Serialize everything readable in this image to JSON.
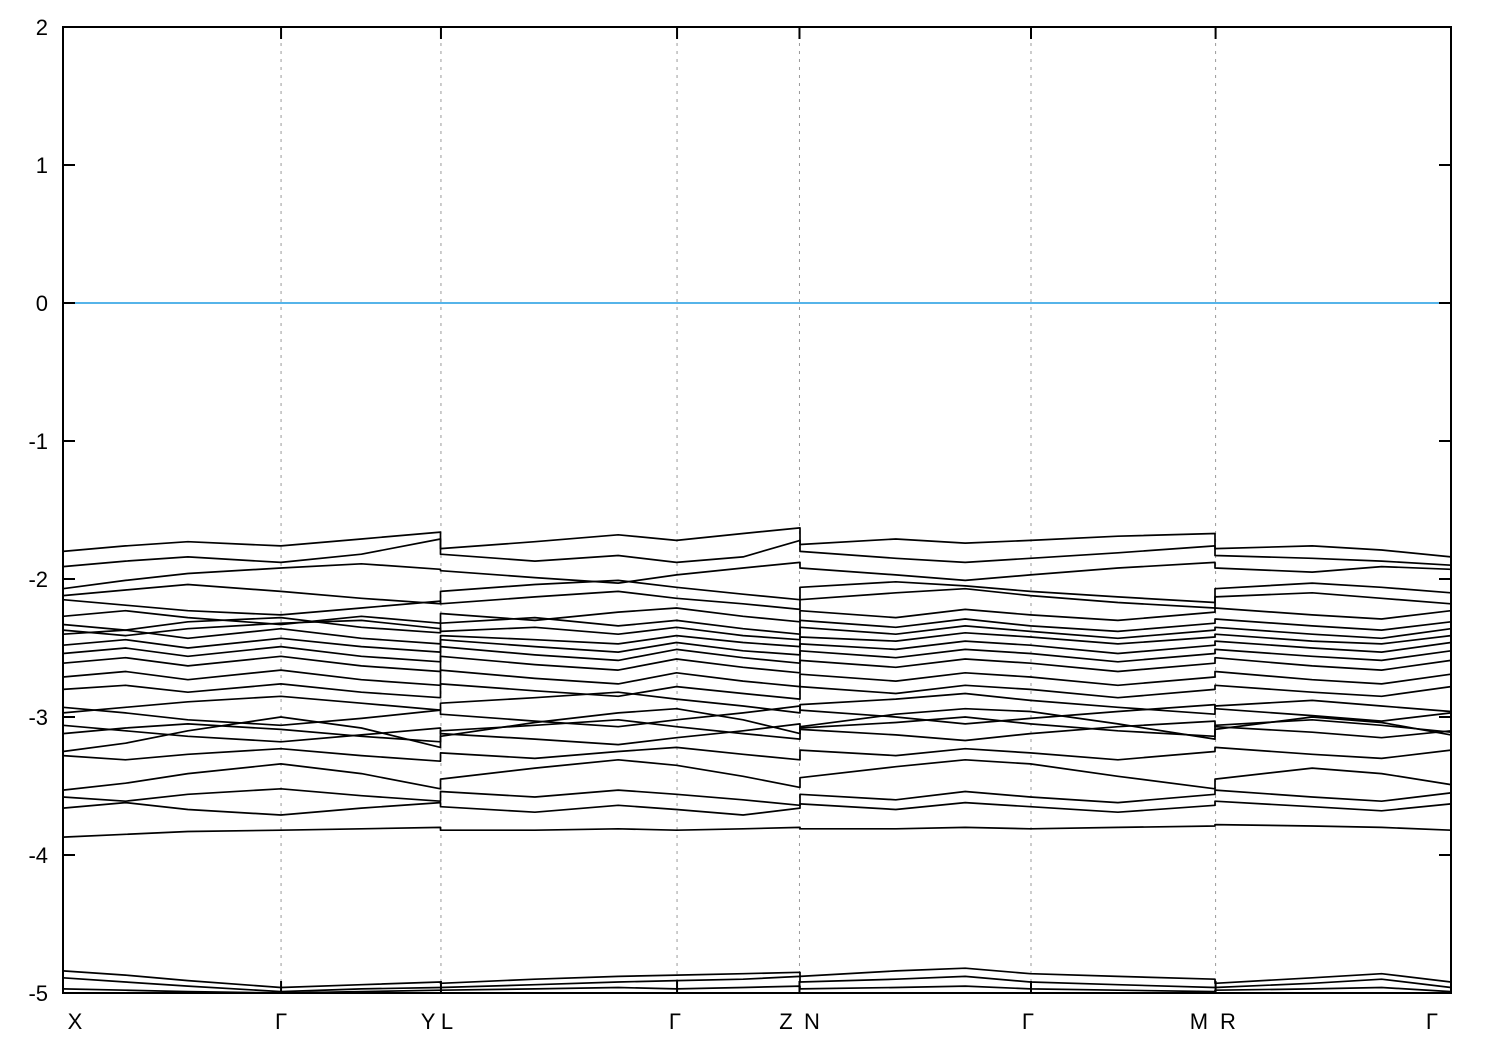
{
  "chart_data": {
    "type": "line",
    "title": "",
    "xlabel": "",
    "ylabel": "",
    "ylim": [
      -5,
      2
    ],
    "yticks": [
      2,
      1,
      0,
      -1,
      -2,
      -3,
      -4,
      -5
    ],
    "x_range": [
      0,
      1
    ],
    "grid": "vertical dashed gridlines at interior symmetry points",
    "legend": "none",
    "fermi_level": 0,
    "fermi_color": "#56b4e9",
    "band_color": "#000000",
    "gridline_color": "#9a9a9a",
    "axis_color": "#000000",
    "background_color": "#ffffff",
    "kpath_segments": [
      "X-Γ-Y",
      "L-Γ-Z",
      "N-Γ-M",
      "R-Γ"
    ],
    "segment_boundaries_x": [
      0.2723,
      0.5306,
      0.8304
    ],
    "gridline_x": [
      0.1571,
      0.2723,
      0.4424,
      0.5306,
      0.6974,
      0.8304
    ],
    "axis_labels": [
      {
        "label": "X",
        "x": 0.0086
      },
      {
        "label": "Γ",
        "x": 0.1571
      },
      {
        "label": "Y",
        "x": 0.263
      },
      {
        "label": "L",
        "x": 0.2767
      },
      {
        "label": "Γ",
        "x": 0.4409
      },
      {
        "label": "Z",
        "x": 0.5209
      },
      {
        "label": "N",
        "x": 0.5396
      },
      {
        "label": "Γ",
        "x": 0.6952
      },
      {
        "label": "M",
        "x": 0.8184
      },
      {
        "label": "R",
        "x": 0.8393
      },
      {
        "label": "Γ",
        "x": 0.9863
      }
    ],
    "xs": [
      0,
      0.045,
      0.09,
      0.157,
      0.215,
      0.272,
      0.272,
      0.34,
      0.4,
      0.442,
      0.49,
      0.531,
      0.531,
      0.6,
      0.65,
      0.697,
      0.76,
      0.83,
      0.83,
      0.9,
      0.95,
      1.0
    ],
    "bands": [
      [
        -1.8,
        -1.76,
        -1.73,
        -1.76,
        -1.71,
        -1.66,
        -1.78,
        -1.73,
        -1.68,
        -1.72,
        -1.67,
        -1.63,
        -1.75,
        -1.71,
        -1.74,
        -1.72,
        -1.69,
        -1.67,
        -1.78,
        -1.76,
        -1.79,
        -1.84
      ],
      [
        -1.91,
        -1.87,
        -1.84,
        -1.88,
        -1.82,
        -1.71,
        -1.82,
        -1.87,
        -1.83,
        -1.88,
        -1.84,
        -1.72,
        -1.8,
        -1.85,
        -1.88,
        -1.85,
        -1.81,
        -1.76,
        -1.83,
        -1.85,
        -1.87,
        -1.9
      ],
      [
        -2.07,
        -2.01,
        -1.96,
        -1.92,
        -1.89,
        -1.93,
        -1.94,
        -1.99,
        -2.03,
        -1.97,
        -1.92,
        -1.88,
        -1.92,
        -1.97,
        -2.01,
        -1.97,
        -1.92,
        -1.88,
        -1.92,
        -1.95,
        -1.91,
        -1.93
      ],
      [
        -2.12,
        -2.08,
        -2.04,
        -2.09,
        -2.14,
        -2.18,
        -2.09,
        -2.04,
        -2.01,
        -2.06,
        -2.11,
        -2.15,
        -2.06,
        -2.02,
        -2.05,
        -2.09,
        -2.13,
        -2.17,
        -2.07,
        -2.03,
        -2.06,
        -2.1
      ],
      [
        -2.15,
        -2.19,
        -2.23,
        -2.26,
        -2.21,
        -2.16,
        -2.18,
        -2.13,
        -2.09,
        -2.14,
        -2.18,
        -2.22,
        -2.15,
        -2.1,
        -2.07,
        -2.12,
        -2.17,
        -2.21,
        -2.13,
        -2.1,
        -2.14,
        -2.18
      ],
      [
        -2.27,
        -2.23,
        -2.28,
        -2.33,
        -2.27,
        -2.32,
        -2.25,
        -2.3,
        -2.24,
        -2.21,
        -2.27,
        -2.31,
        -2.23,
        -2.28,
        -2.22,
        -2.26,
        -2.3,
        -2.24,
        -2.21,
        -2.26,
        -2.29,
        -2.23
      ],
      [
        -2.33,
        -2.37,
        -2.31,
        -2.28,
        -2.35,
        -2.39,
        -2.32,
        -2.28,
        -2.34,
        -2.3,
        -2.36,
        -2.4,
        -2.3,
        -2.35,
        -2.29,
        -2.34,
        -2.38,
        -2.32,
        -2.29,
        -2.34,
        -2.37,
        -2.31
      ],
      [
        -2.37,
        -2.41,
        -2.36,
        -2.32,
        -2.3,
        -2.36,
        -2.38,
        -2.35,
        -2.4,
        -2.35,
        -2.41,
        -2.44,
        -2.35,
        -2.4,
        -2.34,
        -2.38,
        -2.43,
        -2.37,
        -2.35,
        -2.4,
        -2.43,
        -2.36
      ],
      [
        -2.4,
        -2.37,
        -2.43,
        -2.36,
        -2.43,
        -2.47,
        -2.41,
        -2.44,
        -2.47,
        -2.41,
        -2.46,
        -2.49,
        -2.42,
        -2.45,
        -2.39,
        -2.42,
        -2.47,
        -2.42,
        -2.4,
        -2.45,
        -2.47,
        -2.41
      ],
      [
        -2.48,
        -2.44,
        -2.5,
        -2.43,
        -2.49,
        -2.53,
        -2.44,
        -2.49,
        -2.53,
        -2.46,
        -2.52,
        -2.55,
        -2.47,
        -2.51,
        -2.45,
        -2.48,
        -2.54,
        -2.48,
        -2.45,
        -2.5,
        -2.53,
        -2.46
      ],
      [
        -2.54,
        -2.5,
        -2.56,
        -2.49,
        -2.56,
        -2.6,
        -2.49,
        -2.55,
        -2.59,
        -2.51,
        -2.57,
        -2.61,
        -2.52,
        -2.57,
        -2.51,
        -2.54,
        -2.6,
        -2.54,
        -2.51,
        -2.56,
        -2.59,
        -2.52
      ],
      [
        -2.61,
        -2.57,
        -2.63,
        -2.56,
        -2.63,
        -2.67,
        -2.56,
        -2.62,
        -2.66,
        -2.58,
        -2.64,
        -2.68,
        -2.59,
        -2.64,
        -2.58,
        -2.61,
        -2.67,
        -2.61,
        -2.57,
        -2.63,
        -2.66,
        -2.59
      ],
      [
        -2.71,
        -2.67,
        -2.73,
        -2.66,
        -2.73,
        -2.77,
        -2.66,
        -2.72,
        -2.76,
        -2.68,
        -2.74,
        -2.78,
        -2.69,
        -2.74,
        -2.68,
        -2.71,
        -2.77,
        -2.71,
        -2.67,
        -2.73,
        -2.76,
        -2.69
      ],
      [
        -2.8,
        -2.77,
        -2.82,
        -2.76,
        -2.82,
        -2.86,
        -2.76,
        -2.81,
        -2.85,
        -2.78,
        -2.83,
        -2.87,
        -2.78,
        -2.83,
        -2.77,
        -2.8,
        -2.86,
        -2.8,
        -2.77,
        -2.82,
        -2.85,
        -2.78
      ],
      [
        -2.93,
        -2.97,
        -3.02,
        -3.06,
        -3.01,
        -2.95,
        -2.98,
        -3.03,
        -3.07,
        -3.02,
        -2.97,
        -2.92,
        -2.95,
        -3.0,
        -3.05,
        -3.01,
        -2.96,
        -2.91,
        -2.94,
        -2.99,
        -3.03,
        -2.97
      ],
      [
        -2.97,
        -2.93,
        -2.89,
        -2.85,
        -2.9,
        -2.95,
        -2.9,
        -2.86,
        -2.82,
        -2.87,
        -2.92,
        -2.97,
        -2.91,
        -2.87,
        -2.83,
        -2.88,
        -2.93,
        -2.98,
        -2.92,
        -2.88,
        -2.92,
        -2.96
      ],
      [
        -3.06,
        -3.1,
        -3.14,
        -3.18,
        -3.13,
        -3.08,
        -3.12,
        -3.16,
        -3.2,
        -3.15,
        -3.1,
        -3.05,
        -3.09,
        -3.13,
        -3.17,
        -3.12,
        -3.07,
        -3.03,
        -3.07,
        -3.11,
        -3.15,
        -3.1
      ],
      [
        -3.12,
        -3.08,
        -3.05,
        -3.09,
        -3.14,
        -3.18,
        -3.1,
        -3.06,
        -3.02,
        -3.07,
        -3.12,
        -3.16,
        -3.08,
        -3.04,
        -3.0,
        -3.05,
        -3.1,
        -3.14,
        -3.06,
        -3.02,
        -3.06,
        -3.11
      ],
      [
        -3.25,
        -3.19,
        -3.1,
        -3.0,
        -3.08,
        -3.22,
        -3.14,
        -3.04,
        -2.97,
        -2.94,
        -3.02,
        -3.12,
        -3.07,
        -2.98,
        -2.94,
        -2.96,
        -3.05,
        -3.16,
        -3.09,
        -3.0,
        -3.04,
        -3.13
      ],
      [
        -3.28,
        -3.31,
        -3.27,
        -3.23,
        -3.28,
        -3.32,
        -3.26,
        -3.3,
        -3.25,
        -3.22,
        -3.27,
        -3.31,
        -3.24,
        -3.28,
        -3.23,
        -3.26,
        -3.31,
        -3.25,
        -3.22,
        -3.27,
        -3.3,
        -3.24
      ],
      [
        -3.53,
        -3.48,
        -3.41,
        -3.34,
        -3.41,
        -3.52,
        -3.45,
        -3.37,
        -3.31,
        -3.35,
        -3.43,
        -3.51,
        -3.44,
        -3.36,
        -3.31,
        -3.34,
        -3.43,
        -3.52,
        -3.45,
        -3.37,
        -3.41,
        -3.49
      ],
      [
        -3.58,
        -3.61,
        -3.56,
        -3.52,
        -3.57,
        -3.61,
        -3.54,
        -3.58,
        -3.53,
        -3.56,
        -3.6,
        -3.64,
        -3.56,
        -3.6,
        -3.54,
        -3.58,
        -3.62,
        -3.56,
        -3.53,
        -3.58,
        -3.61,
        -3.55
      ],
      [
        -3.66,
        -3.62,
        -3.67,
        -3.71,
        -3.66,
        -3.62,
        -3.65,
        -3.69,
        -3.64,
        -3.67,
        -3.71,
        -3.66,
        -3.63,
        -3.67,
        -3.62,
        -3.65,
        -3.69,
        -3.64,
        -3.61,
        -3.65,
        -3.68,
        -3.63
      ],
      [
        -3.87,
        -3.85,
        -3.83,
        -3.82,
        -3.81,
        -3.8,
        -3.82,
        -3.82,
        -3.81,
        -3.82,
        -3.81,
        -3.8,
        -3.81,
        -3.81,
        -3.8,
        -3.81,
        -3.8,
        -3.79,
        -3.78,
        -3.79,
        -3.8,
        -3.82
      ],
      [
        -4.84,
        -4.87,
        -4.91,
        -4.96,
        -4.94,
        -4.92,
        -4.93,
        -4.9,
        -4.88,
        -4.87,
        -4.86,
        -4.85,
        -4.88,
        -4.84,
        -4.82,
        -4.86,
        -4.88,
        -4.9,
        -4.93,
        -4.89,
        -4.86,
        -4.92
      ],
      [
        -4.89,
        -4.92,
        -4.95,
        -4.99,
        -4.97,
        -4.96,
        -4.96,
        -4.94,
        -4.92,
        -4.91,
        -4.9,
        -4.88,
        -4.92,
        -4.9,
        -4.88,
        -4.92,
        -4.94,
        -4.96,
        -4.96,
        -4.93,
        -4.9,
        -4.96
      ],
      [
        -4.97,
        -4.98,
        -4.99,
        -5.0,
        -4.99,
        -4.98,
        -4.98,
        -4.97,
        -4.96,
        -4.97,
        -4.96,
        -4.95,
        -4.97,
        -4.96,
        -4.95,
        -4.97,
        -4.98,
        -4.99,
        -4.98,
        -4.97,
        -4.96,
        -4.99
      ],
      [
        -5.0,
        -5.0,
        -5.0,
        -5.0,
        -5.0,
        -5.0,
        -5.0,
        -5.0,
        -5.0,
        -5.0,
        -5.0,
        -5.0,
        -5.0,
        -5.0,
        -5.0,
        -5.0,
        -5.0,
        -5.0,
        -5.0,
        -5.0,
        -5.0,
        -5.0
      ]
    ]
  }
}
